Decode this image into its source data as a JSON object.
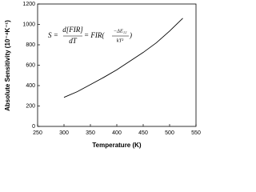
{
  "chart_data": {
    "type": "line",
    "x_label": "Temperature (K)",
    "y_label": "Absolute Sensitivity (10⁻⁴K⁻¹)",
    "annotation": [
      "S =",
      "d[FIR]",
      "dT",
      "= FIR(",
      "−ΔE₁₂",
      "kT²",
      ")"
    ],
    "x": [
      300,
      325,
      350,
      375,
      400,
      425,
      450,
      475,
      500,
      525
    ],
    "series": [
      {
        "color": "#000000",
        "values": [
          285,
          340,
          410,
          480,
          555,
          640,
          725,
          820,
          935,
          1060
        ]
      }
    ],
    "xlim": [
      250,
      550
    ],
    "xticks": [
      250,
      300,
      350,
      400,
      450,
      500,
      550
    ],
    "ylim": [
      0,
      1200
    ],
    "yticks": [
      0,
      200,
      400,
      600,
      800,
      1000,
      1200
    ],
    "grid": false
  }
}
